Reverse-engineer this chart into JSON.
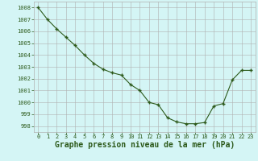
{
  "x": [
    0,
    1,
    2,
    3,
    4,
    5,
    6,
    7,
    8,
    9,
    10,
    11,
    12,
    13,
    14,
    15,
    16,
    17,
    18,
    19,
    20,
    21,
    22,
    23
  ],
  "y": [
    1008.0,
    1007.0,
    1006.2,
    1005.5,
    1004.8,
    1004.0,
    1003.3,
    1002.8,
    1002.5,
    1002.3,
    1001.5,
    1001.0,
    1000.0,
    999.8,
    998.7,
    998.35,
    998.2,
    998.2,
    998.3,
    999.7,
    999.9,
    1001.9,
    1002.7,
    1002.7
  ],
  "line_color": "#2d5a1b",
  "marker_color": "#2d5a1b",
  "bg_color": "#d4f5f5",
  "grid_color": "#b0b0b0",
  "xlabel": "Graphe pression niveau de la mer (hPa)",
  "xlabel_color": "#2d5a1b",
  "ylabel_ticks": [
    998,
    999,
    1000,
    1001,
    1002,
    1003,
    1004,
    1005,
    1006,
    1007,
    1008
  ],
  "ylim": [
    997.5,
    1008.5
  ],
  "xlim": [
    -0.5,
    23.5
  ],
  "xticks": [
    0,
    1,
    2,
    3,
    4,
    5,
    6,
    7,
    8,
    9,
    10,
    11,
    12,
    13,
    14,
    15,
    16,
    17,
    18,
    19,
    20,
    21,
    22,
    23
  ],
  "tick_fontsize": 5.0,
  "xlabel_fontsize": 7.0,
  "marker_size": 3.5,
  "linewidth": 0.8
}
